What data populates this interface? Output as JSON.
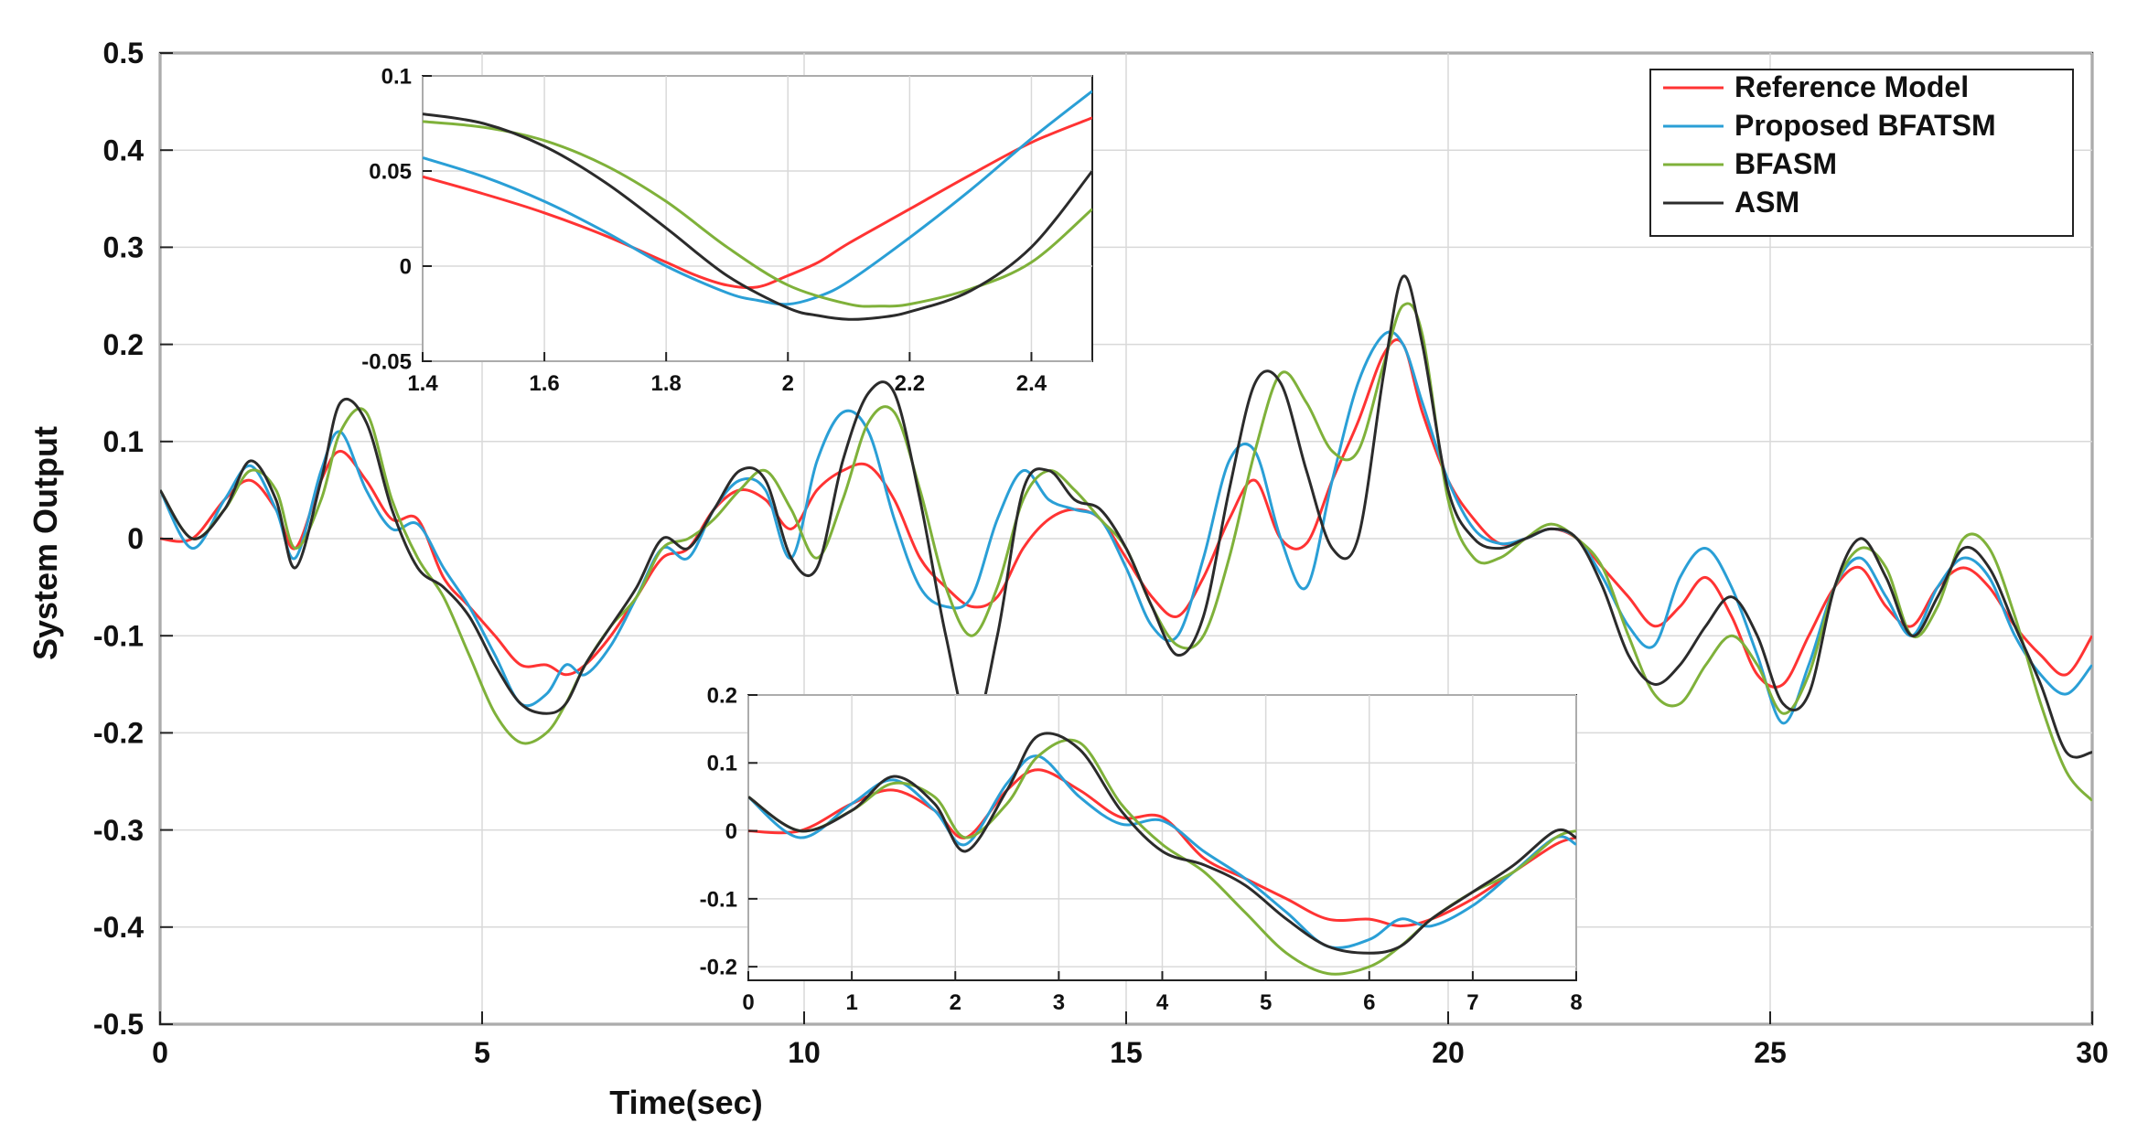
{
  "colors": {
    "reference": "#ff3333",
    "bfatsm": "#2a9fd6",
    "bfasm": "#7fb13a",
    "asm": "#2b2b2b",
    "grid": "#d9d9d9",
    "axis": "#222222"
  },
  "chart_data": [
    {
      "type": "line",
      "role": "main",
      "title": "",
      "xlabel": "Time(sec)",
      "ylabel": "System Output",
      "xlim": [
        0,
        30
      ],
      "ylim": [
        -0.5,
        0.5
      ],
      "xticks": [
        0,
        5,
        10,
        15,
        20,
        25,
        30
      ],
      "yticks": [
        -0.5,
        -0.4,
        -0.3,
        -0.2,
        -0.1,
        0,
        0.1,
        0.2,
        0.3,
        0.4,
        0.5
      ],
      "grid": true,
      "legend": "top-right",
      "series": [
        {
          "name": "Reference Model",
          "color_key": "reference",
          "x": [
            0,
            0.5,
            1.0,
            1.4,
            1.8,
            2.1,
            2.5,
            2.8,
            3.2,
            3.6,
            4.0,
            4.4,
            4.8,
            5.2,
            5.6,
            6.0,
            6.3,
            6.6,
            7.0,
            7.4,
            7.8,
            8.2,
            8.6,
            9.0,
            9.4,
            9.8,
            10.2,
            10.6,
            11.0,
            11.4,
            11.8,
            12.2,
            12.6,
            13.0,
            13.4,
            13.8,
            14.2,
            14.6,
            15.0,
            15.4,
            15.8,
            16.2,
            16.6,
            17.0,
            17.4,
            17.8,
            18.2,
            18.6,
            19.0,
            19.3,
            19.6,
            20.0,
            20.4,
            20.8,
            21.2,
            21.6,
            22.0,
            22.4,
            22.8,
            23.2,
            23.6,
            24.0,
            24.4,
            24.8,
            25.2,
            25.6,
            26.0,
            26.4,
            26.8,
            27.2,
            27.6,
            28.0,
            28.4,
            28.8,
            29.2,
            29.6,
            30.0
          ],
          "y": [
            0.0,
            0.0,
            0.04,
            0.06,
            0.03,
            -0.01,
            0.06,
            0.09,
            0.06,
            0.02,
            0.02,
            -0.04,
            -0.07,
            -0.1,
            -0.13,
            -0.13,
            -0.14,
            -0.13,
            -0.1,
            -0.06,
            -0.02,
            -0.01,
            0.03,
            0.05,
            0.04,
            0.01,
            0.05,
            0.07,
            0.075,
            0.04,
            -0.02,
            -0.05,
            -0.07,
            -0.06,
            -0.01,
            0.02,
            0.03,
            0.02,
            -0.02,
            -0.06,
            -0.08,
            -0.04,
            0.02,
            0.06,
            0.0,
            -0.005,
            0.06,
            0.12,
            0.19,
            0.2,
            0.13,
            0.06,
            0.02,
            -0.005,
            0.0,
            0.01,
            0.0,
            -0.03,
            -0.06,
            -0.09,
            -0.07,
            -0.04,
            -0.08,
            -0.14,
            -0.15,
            -0.1,
            -0.05,
            -0.03,
            -0.07,
            -0.09,
            -0.05,
            -0.03,
            -0.05,
            -0.09,
            -0.12,
            -0.14,
            -0.1
          ]
        },
        {
          "name": "Proposed BFATSM",
          "color_key": "bfatsm",
          "x": [
            0,
            0.5,
            1.0,
            1.4,
            1.8,
            2.1,
            2.5,
            2.8,
            3.2,
            3.6,
            4.0,
            4.4,
            4.8,
            5.2,
            5.6,
            6.0,
            6.3,
            6.6,
            7.0,
            7.4,
            7.8,
            8.2,
            8.6,
            9.0,
            9.4,
            9.8,
            10.2,
            10.6,
            11.0,
            11.4,
            11.8,
            12.2,
            12.6,
            13.0,
            13.4,
            13.8,
            14.2,
            14.6,
            15.0,
            15.4,
            15.8,
            16.2,
            16.6,
            17.0,
            17.4,
            17.8,
            18.2,
            18.6,
            19.0,
            19.3,
            19.6,
            20.0,
            20.4,
            20.8,
            21.2,
            21.6,
            22.0,
            22.4,
            22.8,
            23.2,
            23.6,
            24.0,
            24.4,
            24.8,
            25.2,
            25.6,
            26.0,
            26.4,
            26.8,
            27.2,
            27.6,
            28.0,
            28.4,
            28.8,
            29.2,
            29.6,
            30.0
          ],
          "y": [
            0.05,
            -0.01,
            0.04,
            0.075,
            0.03,
            -0.02,
            0.07,
            0.11,
            0.05,
            0.01,
            0.015,
            -0.03,
            -0.07,
            -0.12,
            -0.17,
            -0.16,
            -0.13,
            -0.14,
            -0.11,
            -0.06,
            -0.01,
            -0.02,
            0.03,
            0.06,
            0.05,
            -0.02,
            0.08,
            0.13,
            0.11,
            0.02,
            -0.05,
            -0.07,
            -0.06,
            0.02,
            0.07,
            0.04,
            0.03,
            0.02,
            -0.03,
            -0.09,
            -0.1,
            -0.02,
            0.08,
            0.09,
            0.0,
            -0.05,
            0.06,
            0.16,
            0.21,
            0.2,
            0.14,
            0.06,
            0.01,
            -0.005,
            0.0,
            0.01,
            0.0,
            -0.04,
            -0.09,
            -0.11,
            -0.04,
            -0.01,
            -0.05,
            -0.12,
            -0.19,
            -0.13,
            -0.05,
            -0.02,
            -0.06,
            -0.1,
            -0.05,
            -0.02,
            -0.04,
            -0.1,
            -0.14,
            -0.16,
            -0.13
          ]
        },
        {
          "name": "BFASM",
          "color_key": "bfasm",
          "x": [
            0,
            0.5,
            1.0,
            1.4,
            1.8,
            2.1,
            2.5,
            2.8,
            3.2,
            3.6,
            4.0,
            4.4,
            4.8,
            5.2,
            5.6,
            6.0,
            6.3,
            6.6,
            7.0,
            7.4,
            7.8,
            8.2,
            8.6,
            9.0,
            9.4,
            9.8,
            10.2,
            10.6,
            11.0,
            11.4,
            11.8,
            12.2,
            12.6,
            13.0,
            13.4,
            13.8,
            14.2,
            14.6,
            15.0,
            15.4,
            15.8,
            16.2,
            16.6,
            17.0,
            17.4,
            17.8,
            18.2,
            18.6,
            19.0,
            19.3,
            19.6,
            20.0,
            20.4,
            20.8,
            21.2,
            21.6,
            22.0,
            22.4,
            22.8,
            23.2,
            23.6,
            24.0,
            24.4,
            24.8,
            25.2,
            25.6,
            26.0,
            26.4,
            26.8,
            27.2,
            27.6,
            28.0,
            28.4,
            28.8,
            29.2,
            29.6,
            30.0
          ],
          "y": [
            0.05,
            0.0,
            0.03,
            0.07,
            0.05,
            -0.01,
            0.04,
            0.11,
            0.13,
            0.04,
            -0.02,
            -0.06,
            -0.12,
            -0.18,
            -0.21,
            -0.2,
            -0.17,
            -0.13,
            -0.09,
            -0.06,
            -0.01,
            0.0,
            0.02,
            0.05,
            0.07,
            0.03,
            -0.02,
            0.04,
            0.12,
            0.13,
            0.05,
            -0.05,
            -0.1,
            -0.05,
            0.04,
            0.07,
            0.05,
            0.02,
            -0.01,
            -0.07,
            -0.11,
            -0.1,
            -0.02,
            0.09,
            0.17,
            0.14,
            0.09,
            0.09,
            0.18,
            0.24,
            0.21,
            0.04,
            -0.02,
            -0.02,
            0.0,
            0.015,
            0.0,
            -0.03,
            -0.1,
            -0.16,
            -0.17,
            -0.13,
            -0.1,
            -0.13,
            -0.18,
            -0.14,
            -0.05,
            -0.01,
            -0.03,
            -0.1,
            -0.07,
            0.0,
            -0.01,
            -0.08,
            -0.17,
            -0.24,
            -0.27
          ]
        },
        {
          "name": "ASM",
          "color_key": "asm",
          "x": [
            0,
            0.5,
            1.0,
            1.4,
            1.8,
            2.1,
            2.5,
            2.8,
            3.2,
            3.6,
            4.0,
            4.4,
            4.8,
            5.2,
            5.6,
            6.0,
            6.3,
            6.6,
            7.0,
            7.4,
            7.8,
            8.2,
            8.6,
            9.0,
            9.4,
            9.8,
            10.2,
            10.6,
            11.0,
            11.4,
            11.8,
            12.2,
            12.6,
            13.0,
            13.4,
            13.8,
            14.2,
            14.6,
            15.0,
            15.4,
            15.8,
            16.2,
            16.6,
            17.0,
            17.4,
            17.8,
            18.2,
            18.6,
            19.0,
            19.3,
            19.6,
            20.0,
            20.4,
            20.8,
            21.2,
            21.6,
            22.0,
            22.4,
            22.8,
            23.2,
            23.6,
            24.0,
            24.4,
            24.8,
            25.2,
            25.6,
            26.0,
            26.4,
            26.8,
            27.2,
            27.6,
            28.0,
            28.4,
            28.8,
            29.2,
            29.6,
            30.0
          ],
          "y": [
            0.05,
            0.0,
            0.03,
            0.08,
            0.04,
            -0.03,
            0.06,
            0.14,
            0.12,
            0.03,
            -0.03,
            -0.05,
            -0.08,
            -0.13,
            -0.17,
            -0.18,
            -0.17,
            -0.13,
            -0.09,
            -0.05,
            0.0,
            -0.01,
            0.03,
            0.07,
            0.06,
            -0.02,
            -0.03,
            0.08,
            0.15,
            0.15,
            0.04,
            -0.1,
            -0.2,
            -0.1,
            0.05,
            0.07,
            0.04,
            0.03,
            -0.01,
            -0.07,
            -0.12,
            -0.08,
            0.05,
            0.16,
            0.16,
            0.07,
            -0.01,
            0.0,
            0.17,
            0.27,
            0.2,
            0.05,
            0.0,
            -0.01,
            0.0,
            0.01,
            0.0,
            -0.05,
            -0.12,
            -0.15,
            -0.13,
            -0.09,
            -0.06,
            -0.1,
            -0.17,
            -0.16,
            -0.05,
            0.0,
            -0.04,
            -0.1,
            -0.06,
            -0.01,
            -0.03,
            -0.09,
            -0.15,
            -0.22,
            -0.22
          ]
        }
      ]
    },
    {
      "type": "line",
      "role": "inset-top",
      "title": "",
      "xlabel": "",
      "ylabel": "",
      "xlim": [
        1.4,
        2.5
      ],
      "ylim": [
        -0.05,
        0.1
      ],
      "xticks": [
        1.4,
        1.6,
        1.8,
        2,
        2.2,
        2.4
      ],
      "ytick_labels": [
        "0.1",
        "0.05",
        "0",
        "-0.05"
      ],
      "yticks": [
        0.1,
        0.05,
        0,
        -0.05
      ],
      "xtick_labels": [
        "1.4",
        "1.6",
        "1.8",
        "2",
        "2.2",
        "2.4"
      ],
      "grid": true,
      "series": [
        {
          "color_key": "reference",
          "x": [
            1.4,
            1.5,
            1.6,
            1.7,
            1.8,
            1.85,
            1.9,
            1.95,
            2.0,
            2.05,
            2.1,
            2.2,
            2.3,
            2.4,
            2.5
          ],
          "y": [
            0.047,
            0.038,
            0.028,
            0.016,
            0.002,
            -0.005,
            -0.01,
            -0.011,
            -0.005,
            0.002,
            0.012,
            0.03,
            0.048,
            0.065,
            0.078
          ]
        },
        {
          "color_key": "bfatsm",
          "x": [
            1.4,
            1.5,
            1.6,
            1.7,
            1.8,
            1.9,
            1.95,
            2.0,
            2.05,
            2.1,
            2.2,
            2.3,
            2.4,
            2.5
          ],
          "y": [
            0.057,
            0.047,
            0.034,
            0.018,
            0.0,
            -0.014,
            -0.018,
            -0.02,
            -0.016,
            -0.008,
            0.015,
            0.04,
            0.067,
            0.092
          ]
        },
        {
          "color_key": "bfasm",
          "x": [
            1.4,
            1.5,
            1.6,
            1.7,
            1.8,
            1.9,
            2.0,
            2.1,
            2.15,
            2.2,
            2.3,
            2.4,
            2.5
          ],
          "y": [
            0.076,
            0.073,
            0.066,
            0.053,
            0.034,
            0.01,
            -0.01,
            -0.02,
            -0.021,
            -0.02,
            -0.012,
            0.002,
            0.03
          ]
        },
        {
          "color_key": "asm",
          "x": [
            1.4,
            1.5,
            1.6,
            1.7,
            1.8,
            1.9,
            2.0,
            2.05,
            2.1,
            2.15,
            2.2,
            2.3,
            2.4,
            2.5
          ],
          "y": [
            0.08,
            0.075,
            0.063,
            0.044,
            0.02,
            -0.005,
            -0.022,
            -0.026,
            -0.028,
            -0.027,
            -0.024,
            -0.013,
            0.01,
            0.05
          ]
        }
      ]
    },
    {
      "type": "line",
      "role": "inset-bottom",
      "title": "",
      "xlabel": "",
      "ylabel": "",
      "xlim": [
        0,
        8
      ],
      "ylim": [
        -0.22,
        0.2
      ],
      "xticks": [
        0,
        1,
        2,
        3,
        4,
        5,
        6,
        7,
        8
      ],
      "xtick_labels": [
        "0",
        "1",
        "2",
        "3",
        "4",
        "5",
        "6",
        "7",
        "8"
      ],
      "yticks": [
        0.2,
        0.1,
        0,
        -0.1,
        -0.2
      ],
      "ytick_labels": [
        "0.2",
        "0.1",
        "0",
        "-0.1",
        "-0.2"
      ],
      "grid": true,
      "series": [
        {
          "color_key": "reference",
          "x": [
            0,
            0.5,
            1.0,
            1.4,
            1.8,
            2.1,
            2.5,
            2.8,
            3.2,
            3.6,
            4.0,
            4.4,
            4.8,
            5.2,
            5.6,
            6.0,
            6.3,
            6.6,
            7.0,
            7.4,
            7.8,
            8.0
          ],
          "y": [
            0.0,
            0.0,
            0.04,
            0.06,
            0.03,
            -0.01,
            0.06,
            0.09,
            0.06,
            0.02,
            0.02,
            -0.04,
            -0.07,
            -0.1,
            -0.13,
            -0.13,
            -0.14,
            -0.13,
            -0.1,
            -0.06,
            -0.02,
            -0.01
          ]
        },
        {
          "color_key": "bfatsm",
          "x": [
            0,
            0.5,
            1.0,
            1.4,
            1.8,
            2.1,
            2.5,
            2.8,
            3.2,
            3.6,
            4.0,
            4.4,
            4.8,
            5.2,
            5.6,
            6.0,
            6.3,
            6.6,
            7.0,
            7.4,
            7.8,
            8.0
          ],
          "y": [
            0.05,
            -0.01,
            0.04,
            0.075,
            0.03,
            -0.02,
            0.07,
            0.11,
            0.05,
            0.01,
            0.015,
            -0.03,
            -0.07,
            -0.12,
            -0.17,
            -0.16,
            -0.13,
            -0.14,
            -0.11,
            -0.06,
            -0.01,
            -0.02
          ]
        },
        {
          "color_key": "bfasm",
          "x": [
            0,
            0.5,
            1.0,
            1.4,
            1.8,
            2.1,
            2.5,
            2.8,
            3.2,
            3.6,
            4.0,
            4.4,
            4.8,
            5.2,
            5.6,
            6.0,
            6.3,
            6.6,
            7.0,
            7.4,
            7.8,
            8.0
          ],
          "y": [
            0.05,
            0.0,
            0.03,
            0.07,
            0.05,
            -0.01,
            0.04,
            0.11,
            0.13,
            0.04,
            -0.02,
            -0.06,
            -0.12,
            -0.18,
            -0.21,
            -0.2,
            -0.17,
            -0.13,
            -0.09,
            -0.06,
            -0.01,
            0.0
          ]
        },
        {
          "color_key": "asm",
          "x": [
            0,
            0.5,
            1.0,
            1.4,
            1.8,
            2.1,
            2.5,
            2.8,
            3.2,
            3.6,
            4.0,
            4.4,
            4.8,
            5.2,
            5.6,
            6.0,
            6.3,
            6.6,
            7.0,
            7.4,
            7.8,
            8.0
          ],
          "y": [
            0.05,
            0.0,
            0.03,
            0.08,
            0.04,
            -0.03,
            0.06,
            0.14,
            0.12,
            0.03,
            -0.03,
            -0.05,
            -0.08,
            -0.13,
            -0.17,
            -0.18,
            -0.17,
            -0.13,
            -0.09,
            -0.05,
            0.0,
            -0.01
          ]
        }
      ]
    }
  ]
}
